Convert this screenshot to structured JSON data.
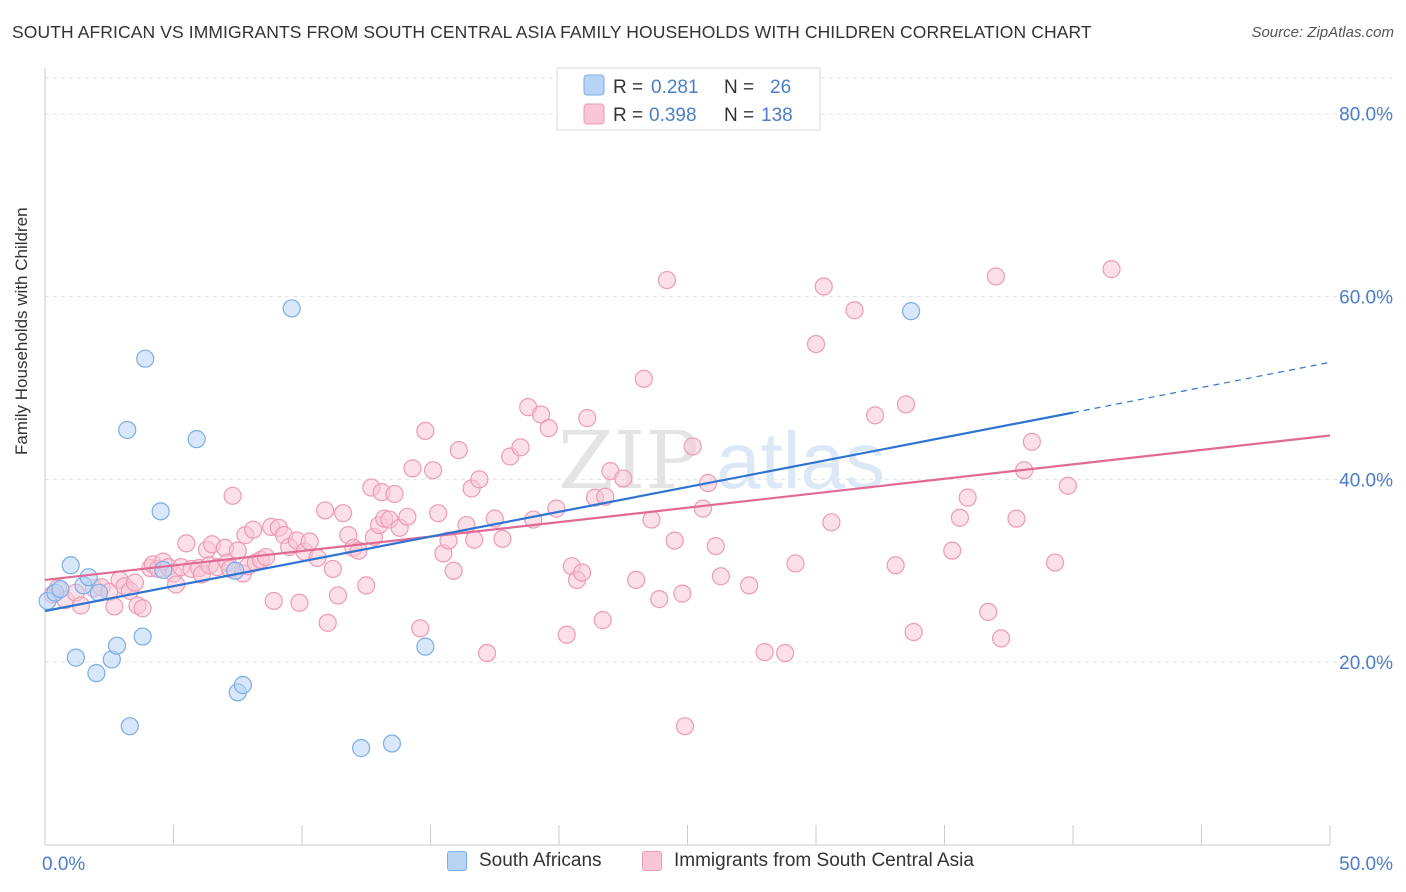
{
  "title": "SOUTH AFRICAN VS IMMIGRANTS FROM SOUTH CENTRAL ASIA FAMILY HOUSEHOLDS WITH CHILDREN CORRELATION CHART",
  "source": "Source: ZipAtlas.com",
  "watermark": {
    "zip": "ZIP",
    "atlas": "atlas"
  },
  "legend_stats": [
    {
      "r_label": "R =",
      "r_value": "0.281",
      "n_label": "N =",
      "n_value": "26"
    },
    {
      "r_label": "R =",
      "r_value": "0.398",
      "n_label": "N =",
      "n_value": "138"
    }
  ],
  "legend_bottom": [
    "South Africans",
    "Immigrants from South Central Asia"
  ],
  "chart_data": {
    "type": "scatter",
    "ylabel": "Family Households with Children",
    "xlim": [
      0,
      50
    ],
    "ylim": [
      0,
      85
    ],
    "x_tick_labels": [
      "0.0%",
      "50.0%"
    ],
    "y_ticks": [
      20,
      40,
      60,
      80
    ],
    "y_tick_labels": [
      "20.0%",
      "40.0%",
      "60.0%",
      "80.0%"
    ],
    "grid": true,
    "colors": {
      "series1_fill": "#b8d4f4",
      "series1_stroke": "#7aaee4",
      "series1_line": "#2f74d0",
      "series2_fill": "#f8c6d6",
      "series2_stroke": "#ee9ab6",
      "series2_line": "#e06a95",
      "tick_label": "#4a7ec8"
    },
    "series": [
      {
        "name": "South Africans",
        "points": [
          [
            0.1,
            26.7
          ],
          [
            0.4,
            27.6
          ],
          [
            0.6,
            28
          ],
          [
            1,
            30.6
          ],
          [
            1.2,
            20.5
          ],
          [
            1.5,
            28.4
          ],
          [
            1.7,
            29.3
          ],
          [
            2,
            18.8
          ],
          [
            2.1,
            27.6
          ],
          [
            2.6,
            20.3
          ],
          [
            2.8,
            21.8
          ],
          [
            3.2,
            45.4
          ],
          [
            3.3,
            13
          ],
          [
            3.8,
            22.8
          ],
          [
            3.9,
            53.2
          ],
          [
            4.5,
            36.5
          ],
          [
            4.6,
            30.1
          ],
          [
            5.9,
            44.4
          ],
          [
            7.4,
            30
          ],
          [
            7.5,
            16.7
          ],
          [
            7.7,
            17.5
          ],
          [
            9.6,
            58.7
          ],
          [
            12.3,
            10.6
          ],
          [
            13.5,
            11.1
          ],
          [
            14.8,
            21.7
          ],
          [
            33.7,
            58.4
          ]
        ],
        "trend": {
          "x": [
            0,
            40
          ],
          "y": [
            25.6,
            47.3
          ]
        },
        "trend_extension": {
          "x": [
            40,
            50
          ],
          "y": [
            47.3,
            52.8
          ]
        }
      },
      {
        "name": "Immigrants from South Central Asia",
        "points": [
          [
            0.3,
            27.4
          ],
          [
            0.5,
            28.1
          ],
          [
            0.8,
            26.8
          ],
          [
            1.2,
            27.6
          ],
          [
            1.4,
            26.2
          ],
          [
            1.9,
            28.1
          ],
          [
            2.2,
            28.2
          ],
          [
            2.5,
            27.7
          ],
          [
            2.7,
            26.1
          ],
          [
            2.9,
            29
          ],
          [
            3.1,
            28.3
          ],
          [
            3.3,
            27.8
          ],
          [
            3.5,
            28.7
          ],
          [
            3.6,
            26.2
          ],
          [
            3.8,
            25.9
          ],
          [
            4.1,
            30.3
          ],
          [
            4.2,
            30.7
          ],
          [
            4.4,
            30.2
          ],
          [
            4.6,
            31
          ],
          [
            4.8,
            30.4
          ],
          [
            5,
            29.7
          ],
          [
            5.1,
            28.5
          ],
          [
            5.3,
            30.4
          ],
          [
            5.5,
            33
          ],
          [
            5.7,
            30.2
          ],
          [
            6,
            30.3
          ],
          [
            6.1,
            29.6
          ],
          [
            6.3,
            32.3
          ],
          [
            6.4,
            30.6
          ],
          [
            6.5,
            32.9
          ],
          [
            6.7,
            30.4
          ],
          [
            7,
            32.5
          ],
          [
            7.1,
            30.9
          ],
          [
            7.2,
            30.2
          ],
          [
            7.3,
            38.2
          ],
          [
            7.5,
            32.2
          ],
          [
            7.7,
            29.7
          ],
          [
            7.8,
            33.9
          ],
          [
            7.9,
            30.5
          ],
          [
            8.1,
            34.5
          ],
          [
            8.2,
            30.9
          ],
          [
            8.4,
            31.2
          ],
          [
            8.6,
            31.5
          ],
          [
            8.8,
            34.8
          ],
          [
            8.9,
            26.7
          ],
          [
            9.1,
            34.7
          ],
          [
            9.3,
            33.9
          ],
          [
            9.5,
            32.6
          ],
          [
            9.8,
            33.3
          ],
          [
            9.9,
            26.5
          ],
          [
            10.1,
            32.1
          ],
          [
            10.3,
            33.2
          ],
          [
            10.6,
            31.4
          ],
          [
            10.9,
            36.6
          ],
          [
            11,
            24.3
          ],
          [
            11.2,
            30.2
          ],
          [
            11.4,
            27.3
          ],
          [
            11.6,
            36.3
          ],
          [
            11.8,
            33.9
          ],
          [
            12,
            32.5
          ],
          [
            12.2,
            32.2
          ],
          [
            12.5,
            28.4
          ],
          [
            12.7,
            39.1
          ],
          [
            12.8,
            33.7
          ],
          [
            13,
            35
          ],
          [
            13.1,
            38.6
          ],
          [
            13.2,
            35.7
          ],
          [
            13.4,
            35.6
          ],
          [
            13.6,
            38.4
          ],
          [
            13.8,
            34.7
          ],
          [
            14.1,
            35.9
          ],
          [
            14.3,
            41.2
          ],
          [
            14.6,
            23.7
          ],
          [
            14.8,
            45.3
          ],
          [
            15.1,
            41
          ],
          [
            15.3,
            36.3
          ],
          [
            15.5,
            31.9
          ],
          [
            15.7,
            33.3
          ],
          [
            15.9,
            30
          ],
          [
            16.1,
            43.2
          ],
          [
            16.4,
            35
          ],
          [
            16.6,
            39
          ],
          [
            16.7,
            33.4
          ],
          [
            16.9,
            40
          ],
          [
            17.2,
            21
          ],
          [
            17.5,
            35.7
          ],
          [
            17.8,
            33.5
          ],
          [
            18.1,
            42.5
          ],
          [
            18.5,
            43.5
          ],
          [
            18.8,
            47.9
          ],
          [
            19,
            35.6
          ],
          [
            19.3,
            47.1
          ],
          [
            19.6,
            45.6
          ],
          [
            19.9,
            36.8
          ],
          [
            20.3,
            23
          ],
          [
            20.5,
            30.5
          ],
          [
            20.7,
            29
          ],
          [
            20.9,
            29.8
          ],
          [
            21.1,
            46.7
          ],
          [
            21.4,
            38
          ],
          [
            21.7,
            24.6
          ],
          [
            21.8,
            38.1
          ],
          [
            22,
            40.9
          ],
          [
            22.5,
            40.1
          ],
          [
            23,
            29
          ],
          [
            23.3,
            51
          ],
          [
            23.6,
            35.6
          ],
          [
            23.9,
            26.9
          ],
          [
            24.2,
            61.8
          ],
          [
            24.5,
            33.3
          ],
          [
            24.8,
            27.5
          ],
          [
            24.9,
            13
          ],
          [
            25.2,
            43.6
          ],
          [
            25.6,
            36.8
          ],
          [
            25.8,
            39.6
          ],
          [
            26.1,
            32.7
          ],
          [
            26.3,
            29.4
          ],
          [
            27.4,
            28.4
          ],
          [
            28,
            21.1
          ],
          [
            28.8,
            21
          ],
          [
            29.2,
            30.8
          ],
          [
            30,
            54.8
          ],
          [
            30.3,
            61.1
          ],
          [
            30.6,
            35.3
          ],
          [
            31.5,
            58.5
          ],
          [
            32.3,
            47
          ],
          [
            33.1,
            30.6
          ],
          [
            33.5,
            48.2
          ],
          [
            33.8,
            23.3
          ],
          [
            35.3,
            32.2
          ],
          [
            35.6,
            35.8
          ],
          [
            35.9,
            38
          ],
          [
            36.7,
            25.5
          ],
          [
            37,
            62.2
          ],
          [
            37.2,
            22.6
          ],
          [
            37.8,
            35.7
          ],
          [
            38.1,
            41
          ],
          [
            38.4,
            44.1
          ],
          [
            39.3,
            30.9
          ],
          [
            39.8,
            39.3
          ],
          [
            41.5,
            63
          ]
        ],
        "trend": {
          "x": [
            0,
            50
          ],
          "y": [
            29,
            44.8
          ]
        }
      }
    ]
  }
}
